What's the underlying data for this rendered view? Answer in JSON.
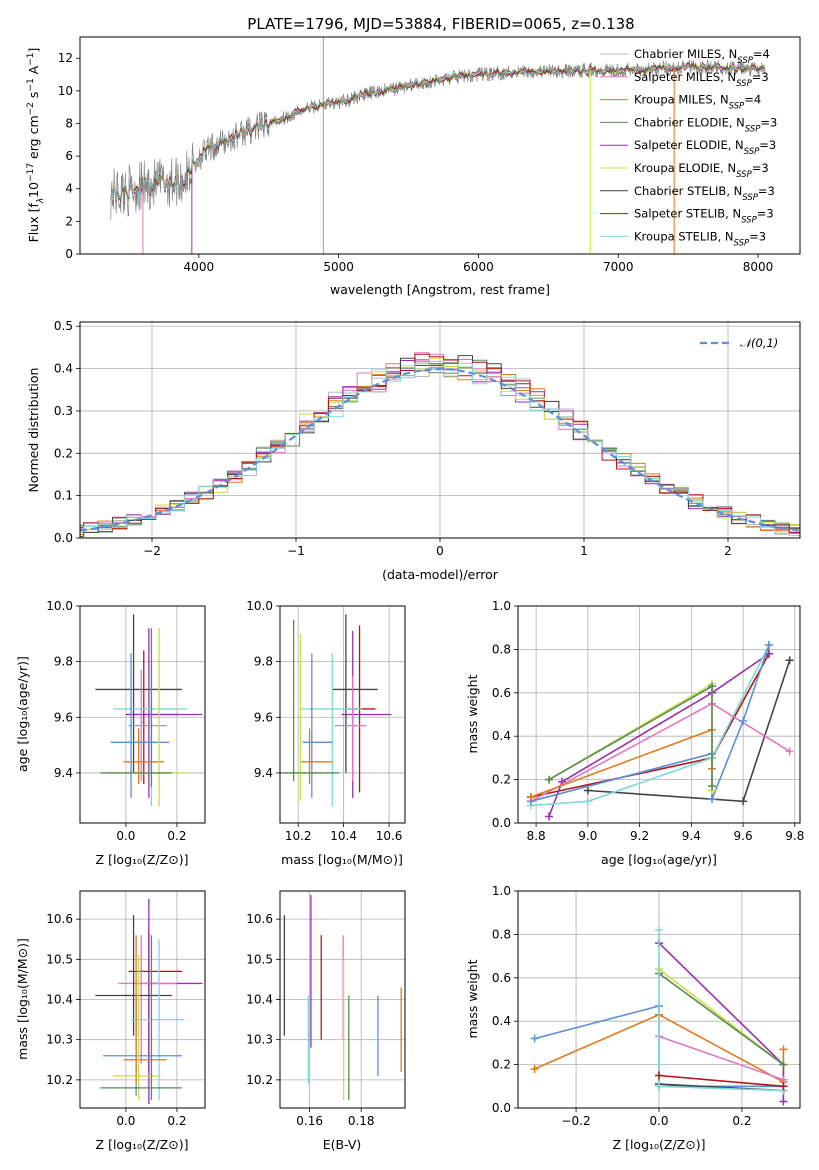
{
  "figure": {
    "title": "PLATE=1796, MJD=53884, FIBERID=0065, z=0.138"
  },
  "models": [
    {
      "name": "Chabrier MILES",
      "nssp": "4",
      "color": "#b8b8b8"
    },
    {
      "name": "Salpeter MILES",
      "nssp": "3",
      "color": "#e377c2"
    },
    {
      "name": "Kroupa MILES",
      "nssp": "4",
      "color": "#e07b20"
    },
    {
      "name": "Chabrier ELODIE",
      "nssp": "3",
      "color": "#5a8a5a"
    },
    {
      "name": "Salpeter ELODIE",
      "nssp": "3",
      "color": "#9a2fb0"
    },
    {
      "name": "Kroupa ELODIE",
      "nssp": "3",
      "color": "#c8e040"
    },
    {
      "name": "Chabrier STELIB",
      "nssp": "3",
      "color": "#444444"
    },
    {
      "name": "Salpeter STELIB",
      "nssp": "3",
      "color": "#b01818"
    },
    {
      "name": "Kroupa STELIB",
      "nssp": "3",
      "color": "#7fd8d8"
    }
  ],
  "chart_data": [
    {
      "id": "spectrum",
      "type": "line",
      "xlabel": "wavelength [Angstrom, rest frame]",
      "ylabel_parts": [
        "Flux [f",
        "λ",
        "10",
        "−17",
        " erg cm",
        "−2",
        " s",
        "−1",
        " A",
        "−1",
        "]"
      ],
      "xlim": [
        3150,
        8300
      ],
      "ylim": [
        0,
        13.3
      ],
      "xticks": [
        4000,
        5000,
        6000,
        7000,
        8000
      ],
      "yticks": [
        0,
        2,
        4,
        6,
        8,
        10,
        12
      ],
      "legend": "top-right",
      "data_color": "#808080",
      "continuum": {
        "x": [
          3370,
          3500,
          3700,
          3900,
          4000,
          4100,
          4300,
          4500,
          4800,
          5000,
          5200,
          5500,
          5800,
          6000,
          6300,
          6600,
          6900,
          7200,
          7500,
          7800,
          8050
        ],
        "y": [
          3.7,
          3.9,
          4.3,
          4.6,
          6.0,
          6.5,
          7.4,
          8.0,
          9.0,
          9.3,
          9.8,
          10.3,
          10.8,
          11.0,
          11.2,
          11.2,
          11.3,
          11.3,
          11.5,
          11.4,
          11.3
        ]
      }
    },
    {
      "id": "residuals",
      "type": "histogram",
      "xlabel": "(data-model)/error",
      "ylabel": "Normed distribution",
      "xlim": [
        -2.5,
        2.5
      ],
      "ylim": [
        0,
        0.51
      ],
      "xticks": [
        -2,
        -1,
        0,
        1,
        2
      ],
      "yticks": [
        0.0,
        0.1,
        0.2,
        0.3,
        0.4,
        0.5
      ],
      "legend": "top-right",
      "gaussian_label": "𝒩(0,1)",
      "gaussian_color": "#5b8fd9",
      "grid": true
    },
    {
      "id": "age-vs-Z",
      "type": "errorbar",
      "xlabel": "Z [log₁₀(Z/Z⊙)]",
      "ylabel": "age  [log₁₀(age/yr)]",
      "xlim": [
        -0.18,
        0.31
      ],
      "ylim": [
        9.22,
        10.0
      ],
      "xticks": [
        0.0,
        0.2
      ],
      "yticks": [
        9.4,
        9.6,
        9.8,
        10.0
      ],
      "grid": true,
      "points": [
        {
          "color": "#444444",
          "x": 0.03,
          "xerr": [
            0.15,
            0.19
          ],
          "y": 9.7,
          "yerr": [
            0.3,
            0.27
          ]
        },
        {
          "color": "#b01818",
          "x": 0.07,
          "xerr": [
            0.07,
            0.14
          ],
          "y": 9.61,
          "yerr": [
            0.25,
            0.23
          ]
        },
        {
          "color": "#9a2fb0",
          "x": 0.09,
          "xerr": [
            0.08,
            0.21
          ],
          "y": 9.61,
          "yerr": [
            0.3,
            0.31
          ]
        },
        {
          "color": "#7fd8d8",
          "x": 0.1,
          "xerr": [
            0.15,
            0.14
          ],
          "y": 9.63,
          "yerr": [
            0.35,
            0.15
          ]
        },
        {
          "color": "#e377c2",
          "x": 0.06,
          "xerr": [
            0.05,
            0.1
          ],
          "y": 9.57,
          "yerr": [
            0.2,
            0.2
          ]
        },
        {
          "color": "#5b8fd9",
          "x": 0.02,
          "xerr": [
            0.08,
            0.15
          ],
          "y": 9.51,
          "yerr": [
            0.2,
            0.32
          ]
        },
        {
          "color": "#e07b20",
          "x": 0.05,
          "xerr": [
            0.06,
            0.1
          ],
          "y": 9.44,
          "yerr": [
            0.08,
            0.12
          ]
        },
        {
          "color": "#c8e040",
          "x": 0.13,
          "xerr": [
            0.2,
            0.1
          ],
          "y": 9.4,
          "yerr": [
            0.12,
            0.52
          ]
        },
        {
          "color": "#5a8a5a",
          "x": 0.1,
          "xerr": [
            0.2,
            0.08
          ],
          "y": 9.4,
          "yerr": [
            0.05,
            0.52
          ]
        }
      ]
    },
    {
      "id": "age-vs-mass",
      "type": "errorbar",
      "xlabel": "mass [log₁₀(M/M⊙)]",
      "ylabel": "",
      "xlim": [
        10.12,
        10.67
      ],
      "ylim": [
        9.22,
        10.0
      ],
      "xticks": [
        10.2,
        10.4,
        10.6
      ],
      "yticks": [
        9.4,
        9.6,
        9.8,
        10.0
      ],
      "grid": true,
      "points": [
        {
          "color": "#444444",
          "x": 10.41,
          "xerr": [
            0.06,
            0.14
          ],
          "y": 9.7,
          "yerr": [
            0.3,
            0.27
          ]
        },
        {
          "color": "#b01818",
          "x": 10.47,
          "xerr": [
            0.06,
            0.07
          ],
          "y": 9.63,
          "yerr": [
            0.3,
            0.3
          ]
        },
        {
          "color": "#9a2fb0",
          "x": 10.44,
          "xerr": [
            0.05,
            0.17
          ],
          "y": 9.61,
          "yerr": [
            0.3,
            0.3
          ]
        },
        {
          "color": "#7fd8d8",
          "x": 10.35,
          "xerr": [
            0.14,
            0.13
          ],
          "y": 9.63,
          "yerr": [
            0.35,
            0.2
          ]
        },
        {
          "color": "#e377c2",
          "x": 10.44,
          "xerr": [
            0.08,
            0.06
          ],
          "y": 9.57,
          "yerr": [
            0.2,
            0.18
          ]
        },
        {
          "color": "#5b8fd9",
          "x": 10.26,
          "xerr": [
            0.04,
            0.09
          ],
          "y": 9.51,
          "yerr": [
            0.2,
            0.32
          ]
        },
        {
          "color": "#e07b20",
          "x": 10.25,
          "xerr": [
            0.04,
            0.1
          ],
          "y": 9.44,
          "yerr": [
            0.08,
            0.12
          ]
        },
        {
          "color": "#c8e040",
          "x": 10.21,
          "xerr": [
            0.08,
            0.1
          ],
          "y": 9.4,
          "yerr": [
            0.1,
            0.5
          ]
        },
        {
          "color": "#5a8a5a",
          "x": 10.18,
          "xerr": [
            0.08,
            0.2
          ],
          "y": 9.4,
          "yerr": [
            0.03,
            0.55
          ]
        }
      ]
    },
    {
      "id": "weight-vs-age",
      "type": "line",
      "xlabel": "age  [log₁₀(age/yr)]",
      "ylabel": "mass weight",
      "xlim": [
        8.73,
        9.82
      ],
      "ylim": [
        0,
        1.0
      ],
      "xticks": [
        8.8,
        9.0,
        9.2,
        9.4,
        9.6,
        9.8
      ],
      "yticks": [
        0.0,
        0.2,
        0.4,
        0.6,
        0.8,
        1.0
      ],
      "grid": true,
      "series": [
        {
          "color": "#444444",
          "x": [
            9.0,
            9.6,
            9.78
          ],
          "y": [
            0.15,
            0.1,
            0.75
          ]
        },
        {
          "color": "#b01818",
          "x": [
            8.78,
            9.48,
            9.7
          ],
          "y": [
            0.12,
            0.3,
            0.78
          ]
        },
        {
          "color": "#9a2fb0",
          "x": [
            8.85,
            8.9,
            9.48,
            9.7
          ],
          "y": [
            0.03,
            0.19,
            0.6,
            0.78
          ]
        },
        {
          "color": "#7fd8d8",
          "x": [
            8.78,
            9.0,
            9.48,
            9.7
          ],
          "y": [
            0.08,
            0.1,
            0.3,
            0.82
          ]
        },
        {
          "color": "#e377c2",
          "x": [
            8.78,
            9.48,
            9.78
          ],
          "y": [
            0.1,
            0.55,
            0.33
          ]
        },
        {
          "color": "#5b8fd9",
          "x": [
            8.78,
            9.48,
            9.48,
            9.6,
            9.7
          ],
          "y": [
            0.1,
            0.32,
            0.11,
            0.47,
            0.82
          ]
        },
        {
          "color": "#e07b20",
          "x": [
            8.78,
            9.48,
            9.48
          ],
          "y": [
            0.12,
            0.43,
            0.25
          ]
        },
        {
          "color": "#c8e040",
          "x": [
            8.85,
            9.48,
            9.48
          ],
          "y": [
            0.2,
            0.64,
            0.15
          ]
        },
        {
          "color": "#5a8a5a",
          "x": [
            8.85,
            9.48,
            9.48
          ],
          "y": [
            0.2,
            0.63,
            0.17
          ]
        }
      ]
    },
    {
      "id": "mass-vs-Z",
      "type": "errorbar",
      "xlabel": "Z [log₁₀(Z/Z⊙)]",
      "ylabel": "mass [log₁₀(M/M⊙)]",
      "xlim": [
        -0.18,
        0.31
      ],
      "ylim": [
        10.13,
        10.67
      ],
      "xticks": [
        0.0,
        0.2
      ],
      "yticks": [
        10.2,
        10.3,
        10.4,
        10.5,
        10.6
      ],
      "grid": true,
      "points": [
        {
          "color": "#b01818",
          "x": 0.09,
          "xerr": [
            0.08,
            0.13
          ],
          "y": 10.47,
          "yerr": [
            0.25,
            0.1
          ]
        },
        {
          "color": "#9a2fb0",
          "x": 0.09,
          "xerr": [
            0.04,
            0.21
          ],
          "y": 10.44,
          "yerr": [
            0.3,
            0.21
          ]
        },
        {
          "color": "#e377c2",
          "x": 0.06,
          "xerr": [
            0.09,
            0.14
          ],
          "y": 10.44,
          "yerr": [
            0.2,
            0.12
          ]
        },
        {
          "color": "#444444",
          "x": 0.03,
          "xerr": [
            0.15,
            0.15
          ],
          "y": 10.41,
          "yerr": [
            0.1,
            0.2
          ]
        },
        {
          "color": "#7fd8d8",
          "x": 0.13,
          "xerr": [
            0.11,
            0.1
          ],
          "y": 10.35,
          "yerr": [
            0.2,
            0.2
          ]
        },
        {
          "color": "#5b8fd9",
          "x": 0.04,
          "xerr": [
            0.13,
            0.18
          ],
          "y": 10.26,
          "yerr": [
            0.1,
            0.15
          ]
        },
        {
          "color": "#e07b20",
          "x": 0.04,
          "xerr": [
            0.05,
            0.12
          ],
          "y": 10.25,
          "yerr": [
            0.06,
            0.31
          ]
        },
        {
          "color": "#c8e040",
          "x": 0.05,
          "xerr": [
            0.1,
            0.08
          ],
          "y": 10.21,
          "yerr": [
            0.06,
            0.3
          ]
        },
        {
          "color": "#5a8a5a",
          "x": 0.1,
          "xerr": [
            0.2,
            0.12
          ],
          "y": 10.18,
          "yerr": [
            0.03,
            0.38
          ]
        }
      ]
    },
    {
      "id": "mass-vs-ebv",
      "type": "errorbar",
      "xlabel": "E(B-V)",
      "ylabel": "",
      "xlim": [
        0.1485,
        0.197
      ],
      "ylim": [
        10.13,
        10.67
      ],
      "xticks": [
        0.16,
        0.18
      ],
      "yticks": [
        10.2,
        10.3,
        10.4,
        10.5,
        10.6
      ],
      "grid": true,
      "points": [
        {
          "color": "#444444",
          "x": 0.1502,
          "ylo": 10.31,
          "yhi": 10.61
        },
        {
          "color": "#7fd8d8",
          "x": 0.1595,
          "ylo": 10.19,
          "yhi": 10.41
        },
        {
          "color": "#9a2fb0",
          "x": 0.1605,
          "ylo": 10.28,
          "yhi": 10.66
        },
        {
          "color": "#b01818",
          "x": 0.1645,
          "ylo": 10.3,
          "yhi": 10.56
        },
        {
          "color": "#e377c2",
          "x": 0.173,
          "ylo": 10.3,
          "yhi": 10.56
        },
        {
          "color": "#c8e040",
          "x": 0.1732,
          "ylo": 10.15,
          "yhi": 10.5
        },
        {
          "color": "#5a8a5a",
          "x": 0.1752,
          "ylo": 10.15,
          "yhi": 10.41
        },
        {
          "color": "#5b8fd9",
          "x": 0.1865,
          "ylo": 10.21,
          "yhi": 10.41
        },
        {
          "color": "#e07b20",
          "x": 0.1955,
          "ylo": 10.22,
          "yhi": 10.43
        }
      ]
    },
    {
      "id": "weight-vs-Z",
      "type": "line",
      "xlabel": "Z [log₁₀(Z/Z⊙)]",
      "ylabel": "mass weight",
      "xlim": [
        -0.34,
        0.34
      ],
      "ylim": [
        0,
        1.0
      ],
      "xticks": [
        -0.2,
        0.0,
        0.2
      ],
      "yticks": [
        0.0,
        0.2,
        0.4,
        0.6,
        0.8,
        1.0
      ],
      "grid": true,
      "series": [
        {
          "color": "#5b8fd9",
          "x": [
            -0.3,
            0.0,
            0.0,
            0.3
          ],
          "y": [
            0.32,
            0.47,
            0.1,
            0.1
          ]
        },
        {
          "color": "#e07b20",
          "x": [
            -0.3,
            0.0,
            0.3,
            0.3
          ],
          "y": [
            0.18,
            0.43,
            0.12,
            0.27
          ]
        },
        {
          "color": "#9a2fb0",
          "x": [
            0.0,
            0.3,
            0.3
          ],
          "y": [
            0.76,
            0.2,
            0.03
          ]
        },
        {
          "color": "#c8e040",
          "x": [
            0.0,
            0.3
          ],
          "y": [
            0.64,
            0.2
          ]
        },
        {
          "color": "#5a8a5a",
          "x": [
            0.0,
            0.3
          ],
          "y": [
            0.62,
            0.2
          ]
        },
        {
          "color": "#e377c2",
          "x": [
            0.0,
            0.3
          ],
          "y": [
            0.33,
            0.13
          ]
        },
        {
          "color": "#444444",
          "x": [
            0.0,
            0.3
          ],
          "y": [
            0.11,
            0.08
          ]
        },
        {
          "color": "#7fd8d8",
          "x": [
            0.0,
            0.0,
            0.3
          ],
          "y": [
            0.82,
            0.1,
            0.08
          ]
        },
        {
          "color": "#b01818",
          "x": [
            0.0,
            0.3
          ],
          "y": [
            0.15,
            0.1
          ]
        }
      ]
    }
  ]
}
